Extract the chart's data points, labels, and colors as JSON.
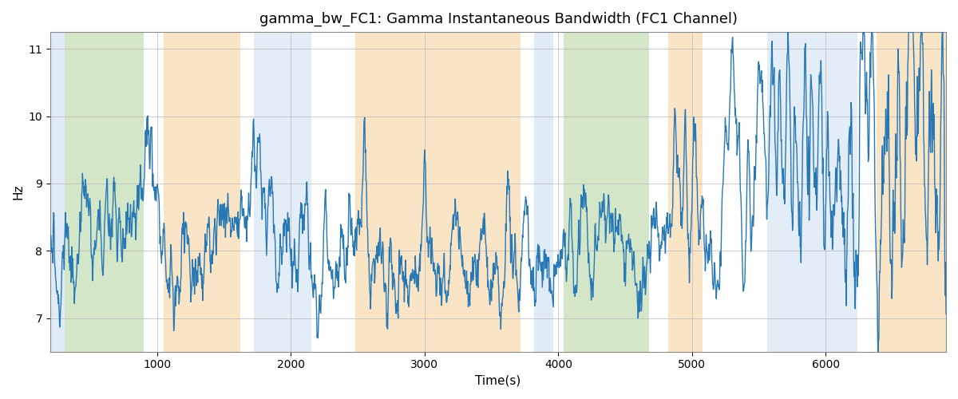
{
  "title": "gamma_bw_FC1: Gamma Instantaneous Bandwidth (FC1 Channel)",
  "xlabel": "Time(s)",
  "ylabel": "Hz",
  "xlim": [
    200,
    6900
  ],
  "ylim": [
    6.5,
    11.25
  ],
  "yticks": [
    7,
    8,
    9,
    10,
    11
  ],
  "xticks": [
    1000,
    2000,
    3000,
    4000,
    5000,
    6000
  ],
  "line_color": "#2878b5",
  "line_width": 1.0,
  "title_fontsize": 13,
  "axis_label_fontsize": 11,
  "colored_bands": [
    {
      "xmin": 200,
      "xmax": 310,
      "color": "#c6dcf0",
      "alpha": 0.55
    },
    {
      "xmin": 310,
      "xmax": 900,
      "color": "#b0d49c",
      "alpha": 0.55
    },
    {
      "xmin": 1050,
      "xmax": 1620,
      "color": "#f5d4a0",
      "alpha": 0.6
    },
    {
      "xmin": 1720,
      "xmax": 2150,
      "color": "#c6dcf0",
      "alpha": 0.5
    },
    {
      "xmin": 2480,
      "xmax": 3720,
      "color": "#f5d4a0",
      "alpha": 0.6
    },
    {
      "xmin": 3820,
      "xmax": 3960,
      "color": "#c6dcf0",
      "alpha": 0.55
    },
    {
      "xmin": 4040,
      "xmax": 4680,
      "color": "#b0d49c",
      "alpha": 0.55
    },
    {
      "xmin": 4820,
      "xmax": 5080,
      "color": "#f5d4a0",
      "alpha": 0.6
    },
    {
      "xmin": 5560,
      "xmax": 6240,
      "color": "#c6dcf0",
      "alpha": 0.5
    },
    {
      "xmin": 6380,
      "xmax": 6900,
      "color": "#f5d4a0",
      "alpha": 0.6
    }
  ],
  "n_points": 2200,
  "t_start": 200,
  "t_end": 6900,
  "seed": 2023
}
